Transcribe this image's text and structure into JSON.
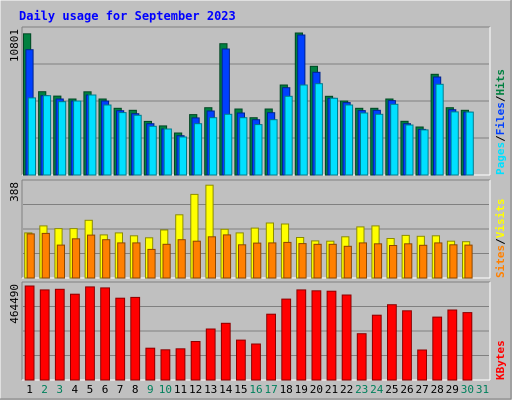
{
  "chart_data": [
    {
      "type": "bar",
      "title": "Daily usage for September 2023",
      "ylabel_parts": [
        "Pages",
        "Files",
        "Hits"
      ],
      "ymax_label": "10801",
      "ymax": 10801,
      "categories": [
        "1",
        "2",
        "3",
        "4",
        "5",
        "6",
        "7",
        "8",
        "9",
        "10",
        "11",
        "12",
        "13",
        "14",
        "15",
        "16",
        "17",
        "18",
        "19",
        "20",
        "21",
        "22",
        "23",
        "24",
        "25",
        "26",
        "27",
        "28",
        "29",
        "30",
        "31"
      ],
      "weekend_days": [
        "2",
        "3",
        "9",
        "10",
        "16",
        "17",
        "23",
        "24",
        "30",
        "31"
      ],
      "series": [
        {
          "name": "Hits",
          "values": [
            10590,
            6250,
            5920,
            5700,
            6240,
            5700,
            5000,
            4850,
            4020,
            3680,
            3150,
            4530,
            5050,
            9850,
            4950,
            4300,
            4950,
            6750,
            10650,
            8150,
            5900,
            5550,
            5000,
            5000,
            5700,
            4030,
            3600,
            7550,
            5050,
            4850,
            null
          ]
        },
        {
          "name": "Files",
          "values": [
            9400,
            5950,
            5700,
            5550,
            6000,
            5550,
            4820,
            4600,
            3850,
            3450,
            2950,
            4280,
            4800,
            9450,
            4650,
            4150,
            4670,
            6550,
            10500,
            7700,
            5750,
            5430,
            4830,
            4850,
            5580,
            3850,
            3420,
            7350,
            4900,
            4720,
            null
          ]
        },
        {
          "name": "Pages",
          "values": [
            5780,
            5950,
            5500,
            5550,
            6000,
            5250,
            4680,
            4480,
            3650,
            3450,
            2850,
            3850,
            4300,
            4550,
            4300,
            3780,
            4150,
            5900,
            6750,
            6850,
            5750,
            5250,
            4650,
            4550,
            5300,
            3750,
            3380,
            6800,
            4730,
            4720,
            null
          ]
        }
      ],
      "colors": {
        "Hits": "#008040",
        "Files": "#0040ff",
        "Pages": "#00e0ff"
      }
    },
    {
      "type": "bar",
      "ylabel_parts": [
        "Sites",
        "Visits"
      ],
      "ymax_label": "388",
      "ymax": 388,
      "series": [
        {
          "name": "Visits",
          "values": [
            186,
            215,
            204,
            204,
            238,
            178,
            186,
            174,
            166,
            198,
            261,
            345,
            383,
            201,
            186,
            206,
            227,
            223,
            167,
            153,
            152,
            170,
            211,
            215,
            163,
            176,
            172,
            174,
            152,
            150,
            null
          ]
        },
        {
          "name": "Sites",
          "values": [
            182,
            184,
            136,
            162,
            177,
            158,
            145,
            145,
            118,
            139,
            158,
            152,
            170,
            178,
            137,
            144,
            145,
            147,
            142,
            139,
            139,
            131,
            145,
            141,
            134,
            141,
            135,
            145,
            137,
            136,
            null
          ]
        }
      ],
      "colors": {
        "Visits": "#ffff00",
        "Sites": "#ff8000"
      }
    },
    {
      "type": "bar",
      "ylabel_parts": [
        "KBytes"
      ],
      "ymax_label": "464490",
      "ymax": 464490,
      "series": [
        {
          "name": "KBytes",
          "values": [
            464490,
            445000,
            448000,
            424000,
            460000,
            455000,
            404000,
            408000,
            157000,
            149000,
            154000,
            190000,
            252000,
            280000,
            197000,
            178000,
            325000,
            400000,
            445000,
            441000,
            439000,
            420000,
            229000,
            320000,
            372000,
            342000,
            148000,
            311000,
            346000,
            333000,
            null
          ]
        }
      ],
      "colors": {
        "KBytes": "#ff0000"
      }
    }
  ]
}
